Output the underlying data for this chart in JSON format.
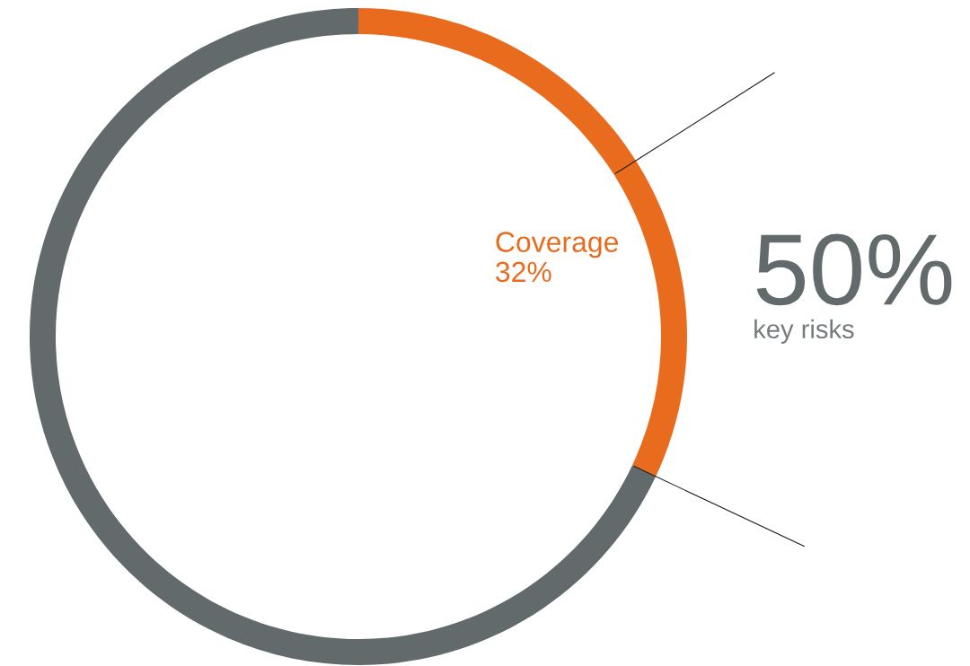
{
  "chart_data": {
    "type": "donut",
    "categories": [
      null,
      "key risks",
      null
    ],
    "values": [
      16,
      16,
      68
    ],
    "colors": [
      "#e96c1e",
      "#e96c1e",
      "#636a6c"
    ],
    "annotations": [
      "Coverage\n32%",
      "50%"
    ]
  }
}
